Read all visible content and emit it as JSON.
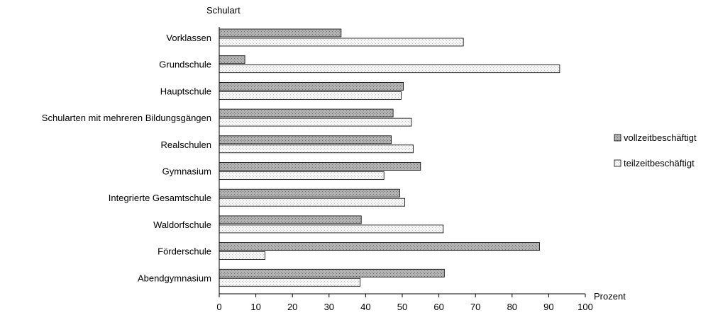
{
  "chart_data": {
    "type": "bar",
    "orientation": "horizontal",
    "ylabel": "Schulart",
    "xlabel": "Prozent",
    "xlim": [
      0,
      100
    ],
    "xticks": [
      0,
      10,
      20,
      30,
      40,
      50,
      60,
      70,
      80,
      90,
      100
    ],
    "grid": false,
    "legend": "right",
    "categories": [
      "Vorklassen",
      "Grundschule",
      "Hauptschule",
      "Schularten mit mehreren Bildungsgängen",
      "Realschulen",
      "Gymnasium",
      "Integrierte Gesamtschule",
      "Waldorfschule",
      "Förderschule",
      "Abendgymnasium"
    ],
    "series": [
      {
        "name": "vollzeitbeschäftigt",
        "color": "#a6a6a6",
        "values": [
          33.3,
          7.0,
          50.3,
          47.5,
          47.0,
          55.0,
          49.3,
          38.8,
          87.5,
          61.5
        ]
      },
      {
        "name": "teilzeitbeschäftigt",
        "color": "#eeeeee",
        "values": [
          66.7,
          93.0,
          49.7,
          52.5,
          53.0,
          45.0,
          50.7,
          61.2,
          12.5,
          38.5
        ]
      }
    ]
  }
}
